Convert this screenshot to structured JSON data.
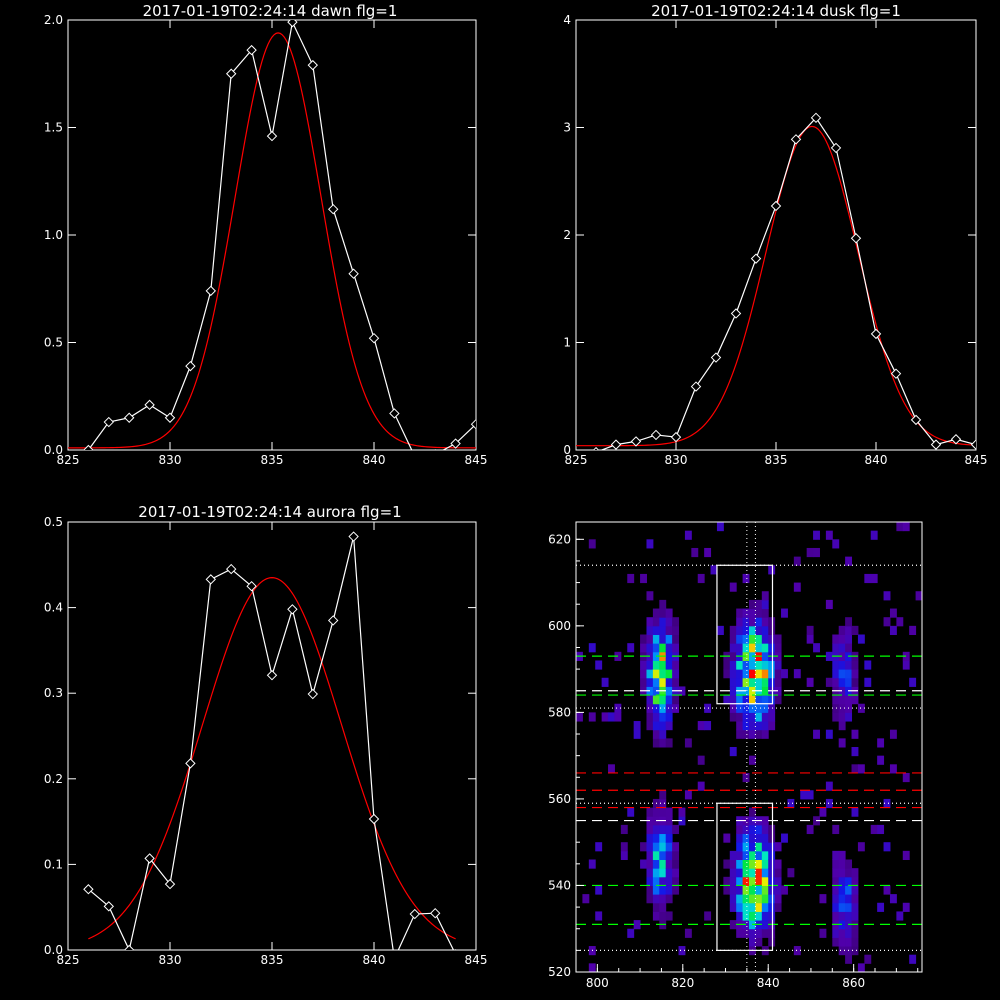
{
  "chart_data": [
    {
      "type": "line",
      "title": "2017-01-19T02:24:14 dawn flg=1",
      "xlim": [
        825,
        845
      ],
      "ylim": [
        0,
        2.0
      ],
      "xticks": [
        "825",
        "830",
        "835",
        "840",
        "845"
      ],
      "yticks": [
        "0.0",
        "0.5",
        "1.0",
        "1.5",
        "2.0"
      ],
      "series": [
        {
          "color": "#ffffff",
          "marker": "diamond",
          "x": [
            826,
            827,
            828,
            829,
            830,
            831,
            832,
            833,
            834,
            835,
            836,
            837,
            838,
            839,
            840,
            841,
            842,
            843,
            844,
            845
          ],
          "y": [
            0.0,
            0.13,
            0.15,
            0.21,
            0.15,
            0.39,
            0.74,
            1.75,
            1.86,
            1.46,
            1.99,
            1.79,
            1.12,
            0.82,
            0.52,
            0.17,
            -0.03,
            -0.02,
            0.03,
            0.12
          ]
        },
        {
          "color": "#ff0000",
          "fit": "gaussian",
          "amplitude": 1.93,
          "center": 835.3,
          "sigma": 2.1,
          "offset": 0.01
        }
      ]
    },
    {
      "type": "line",
      "title": "2017-01-19T02:24:14 dusk flg=1",
      "xlim": [
        825,
        845
      ],
      "ylim": [
        0,
        4
      ],
      "xticks": [
        "825",
        "830",
        "835",
        "840",
        "845"
      ],
      "yticks": [
        "0",
        "1",
        "2",
        "3",
        "4"
      ],
      "series": [
        {
          "color": "#ffffff",
          "marker": "diamond",
          "x": [
            826,
            827,
            828,
            829,
            830,
            831,
            832,
            833,
            834,
            835,
            836,
            837,
            838,
            839,
            840,
            841,
            842,
            843,
            844,
            845
          ],
          "y": [
            -0.02,
            0.05,
            0.08,
            0.14,
            0.12,
            0.59,
            0.86,
            1.27,
            1.78,
            2.27,
            2.89,
            3.09,
            2.81,
            1.97,
            1.08,
            0.71,
            0.28,
            0.05,
            0.1,
            0.05
          ]
        },
        {
          "color": "#ff0000",
          "fit": "gaussian",
          "amplitude": 2.97,
          "center": 836.8,
          "sigma": 2.3,
          "offset": 0.04
        }
      ]
    },
    {
      "type": "line",
      "title": "2017-01-19T02:24:14 aurora flg=1",
      "xlim": [
        825,
        845
      ],
      "ylim": [
        0,
        0.5
      ],
      "xticks": [
        "825",
        "830",
        "835",
        "840",
        "845"
      ],
      "yticks": [
        "0.0",
        "0.1",
        "0.2",
        "0.3",
        "0.4",
        "0.5"
      ],
      "series": [
        {
          "color": "#ffffff",
          "marker": "diamond",
          "x": [
            826,
            827,
            828,
            829,
            830,
            831,
            832,
            833,
            834,
            835,
            836,
            837,
            838,
            839,
            840,
            841,
            842,
            843,
            844
          ],
          "y": [
            0.071,
            0.051,
            0.0,
            0.107,
            0.077,
            0.218,
            0.433,
            0.445,
            0.425,
            0.321,
            0.398,
            0.299,
            0.385,
            0.483,
            0.153,
            -0.01,
            0.042,
            0.043,
            -0.005
          ]
        },
        {
          "color": "#ff0000",
          "fit": "gaussian",
          "amplitude": 0.435,
          "center": 835.0,
          "sigma": 3.4,
          "offset": 0.0,
          "x_range": [
            826,
            844
          ]
        }
      ]
    },
    {
      "type": "heatmap",
      "xlim": [
        795,
        876
      ],
      "ylim": [
        520,
        624
      ],
      "xticks": [
        "800",
        "820",
        "840",
        "860"
      ],
      "yticks": [
        "520",
        "540",
        "560",
        "580",
        "600",
        "620"
      ],
      "colormap": "rainbow",
      "hotspots": [
        {
          "x": 814,
          "y": 588,
          "intensity": 0.9
        },
        {
          "x": 836,
          "y": 588,
          "intensity": 1.0
        },
        {
          "x": 857,
          "y": 588,
          "intensity": 0.35
        },
        {
          "x": 814,
          "y": 545,
          "intensity": 0.55
        },
        {
          "x": 836,
          "y": 540,
          "intensity": 0.95
        },
        {
          "x": 857,
          "y": 535,
          "intensity": 0.4
        }
      ],
      "boxes": [
        {
          "x": [
            828,
            841
          ],
          "y": [
            582,
            614
          ]
        },
        {
          "x": [
            828,
            841
          ],
          "y": [
            525,
            559
          ]
        }
      ],
      "hlines": [
        {
          "y": 614,
          "color": "#ffffff",
          "style": "dotted"
        },
        {
          "y": 593,
          "color": "#00ff00",
          "style": "dashed"
        },
        {
          "y": 585,
          "color": "#ffffff",
          "style": "dashed"
        },
        {
          "y": 584,
          "color": "#00ff00",
          "style": "dashed"
        },
        {
          "y": 581,
          "color": "#ffffff",
          "style": "dotted"
        },
        {
          "y": 566,
          "color": "#ff0000",
          "style": "dashed"
        },
        {
          "y": 562,
          "color": "#ff0000",
          "style": "dashed"
        },
        {
          "y": 559,
          "color": "#ffffff",
          "style": "dotted"
        },
        {
          "y": 558,
          "color": "#ff0000",
          "style": "dashed"
        },
        {
          "y": 555,
          "color": "#ffffff",
          "style": "dashed"
        },
        {
          "y": 540,
          "color": "#00ff00",
          "style": "dashed"
        },
        {
          "y": 531,
          "color": "#00ff00",
          "style": "dashed"
        },
        {
          "y": 525,
          "color": "#ffffff",
          "style": "dotted"
        }
      ],
      "vlines": [
        {
          "x": 835,
          "color": "#ffffff",
          "style": "dotted"
        },
        {
          "x": 837,
          "color": "#ffffff",
          "style": "dotted"
        }
      ]
    }
  ]
}
